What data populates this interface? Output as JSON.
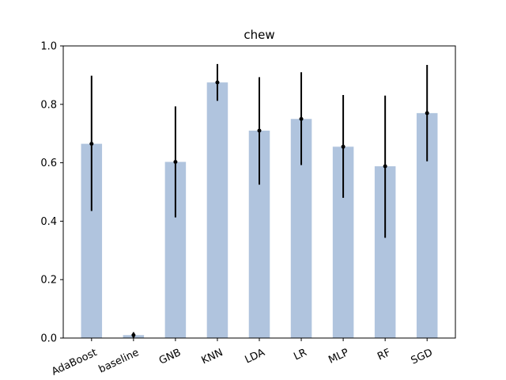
{
  "chart_data": {
    "type": "bar",
    "title": "chew",
    "xlabel": "",
    "ylabel": "",
    "categories": [
      "AdaBoost",
      "baseline",
      "GNB",
      "KNN",
      "LDA",
      "LR",
      "MLP",
      "RF",
      "SGD"
    ],
    "values": [
      0.665,
      0.01,
      0.603,
      0.875,
      0.71,
      0.75,
      0.655,
      0.588,
      0.77
    ],
    "error_low": [
      0.435,
      0.0,
      0.413,
      0.812,
      0.525,
      0.592,
      0.48,
      0.343,
      0.605
    ],
    "error_high": [
      0.898,
      0.02,
      0.793,
      0.938,
      0.893,
      0.91,
      0.832,
      0.83,
      0.935
    ],
    "ylim": [
      0,
      1.0
    ],
    "yticks": [
      "0.0",
      "0.2",
      "0.4",
      "0.6",
      "0.8",
      "1.0"
    ],
    "ytick_values": [
      0,
      0.2,
      0.4,
      0.6,
      0.8,
      1.0
    ],
    "grid": false,
    "colors": {
      "bar": "#b0c4de",
      "error": "#000000",
      "axis": "#000000"
    }
  }
}
